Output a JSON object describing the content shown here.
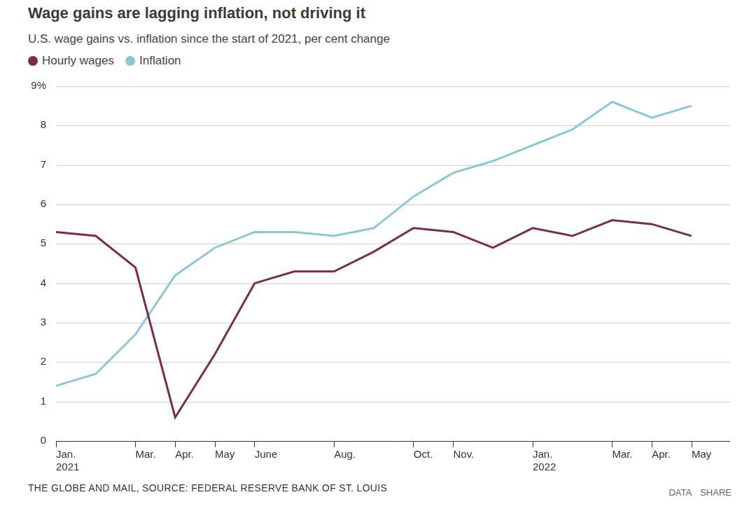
{
  "chart_data": {
    "type": "line",
    "title": "Wage gains are lagging inflation, not driving it",
    "subtitle": "U.S. wage gains vs. inflation since the start of 2021, per cent change",
    "categories": [
      "Jan. 2021",
      null,
      "Mar.",
      "Apr.",
      "May",
      "June",
      null,
      "Aug.",
      null,
      "Oct.",
      "Nov.",
      null,
      "Jan. 2022",
      null,
      "Mar.",
      "Apr.",
      "May"
    ],
    "series": [
      {
        "name": "Hourly wages",
        "color": "#7a2b51",
        "values": [
          5.3,
          5.2,
          4.4,
          0.6,
          2.2,
          4.0,
          4.3,
          4.3,
          4.8,
          5.4,
          5.3,
          4.9,
          5.4,
          5.2,
          5.6,
          5.5,
          5.2
        ]
      },
      {
        "name": "Inflation",
        "color": "#8bc9d2",
        "values": [
          1.4,
          1.7,
          2.7,
          4.2,
          4.9,
          5.3,
          5.3,
          5.2,
          5.4,
          6.2,
          6.8,
          7.1,
          7.5,
          7.9,
          8.6,
          8.2,
          8.5
        ]
      }
    ],
    "ylim": [
      0,
      9
    ],
    "yticks": [
      0,
      1,
      2,
      3,
      4,
      5,
      6,
      7,
      8,
      {
        "value": 9,
        "label": "9%"
      }
    ],
    "grid": true,
    "legend": "top-left",
    "source": "THE GLOBE AND MAIL, SOURCE: FEDERAL RESERVE BANK OF ST. LOUIS",
    "links": [
      "DATA",
      "SHARE"
    ]
  }
}
